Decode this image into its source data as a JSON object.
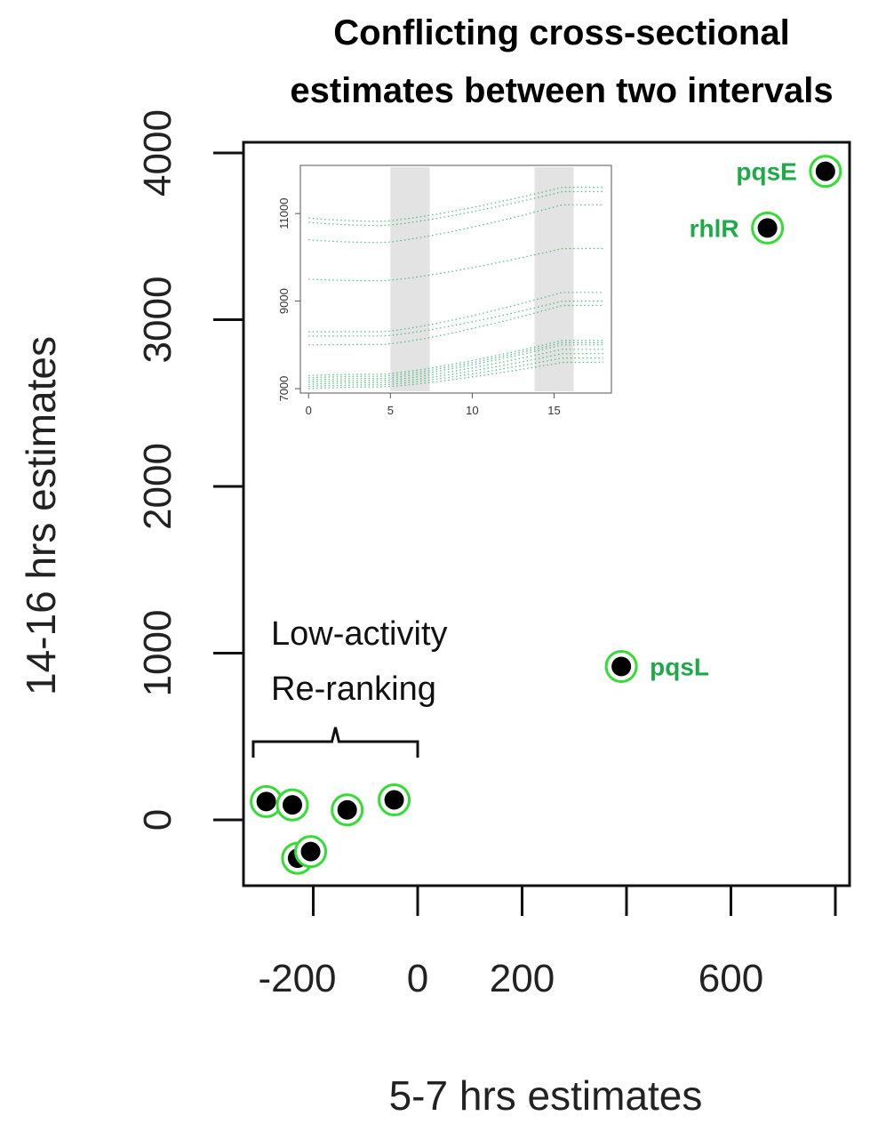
{
  "chart_data": {
    "type": "scatter",
    "title": [
      "Conflicting cross-sectional",
      "estimates between two intervals"
    ],
    "xlabel": "5-7 hrs estimates",
    "ylabel": "14-16 hrs estimates",
    "xlim": [
      -320,
      800
    ],
    "ylim": [
      -400,
      4250
    ],
    "x_ticks": [
      -200,
      0,
      200,
      400,
      600,
      800
    ],
    "x_tick_labels": [
      "-200",
      "0",
      "200",
      "",
      "600",
      ""
    ],
    "y_ticks": [
      0,
      1000,
      2000,
      3000,
      4000
    ],
    "y_tick_labels": [
      "0",
      "1000",
      "2000",
      "3000",
      "4000"
    ],
    "marker_fill": "#000000",
    "marker_ring": "#33dd33",
    "label_color": "#1faa4a",
    "points": [
      {
        "x": 781,
        "y": 3890,
        "label": "pqsE"
      },
      {
        "x": 670,
        "y": 3550,
        "label": "rhlR"
      },
      {
        "x": 390,
        "y": 920,
        "label": "pqsL"
      },
      {
        "x": -290,
        "y": 110,
        "label": ""
      },
      {
        "x": -240,
        "y": 90,
        "label": ""
      },
      {
        "x": -135,
        "y": 60,
        "label": ""
      },
      {
        "x": -45,
        "y": 120,
        "label": ""
      },
      {
        "x": -230,
        "y": -230,
        "label": ""
      },
      {
        "x": -205,
        "y": -190,
        "label": ""
      }
    ],
    "annotation": {
      "lines": [
        "Low-activity",
        "Re-ranking"
      ],
      "bracket_x": [
        -315,
        0
      ]
    },
    "inset": {
      "type": "line",
      "xlim": [
        -0.5,
        18.5
      ],
      "ylim": [
        6900,
        12100
      ],
      "x_ticks": [
        0,
        5,
        10,
        15
      ],
      "y_ticks": [
        7000,
        9000,
        11000
      ],
      "shaded_intervals": [
        [
          5,
          7.4
        ],
        [
          13.8,
          16.2
        ]
      ],
      "line_color": "#2db36b",
      "series_start_end": [
        [
          7000,
          7600
        ],
        [
          7050,
          7700
        ],
        [
          7100,
          7800
        ],
        [
          7150,
          7900
        ],
        [
          7200,
          8000
        ],
        [
          7250,
          8050
        ],
        [
          7300,
          8100
        ],
        [
          8000,
          8900
        ],
        [
          8200,
          9000
        ],
        [
          8300,
          9200
        ],
        [
          9500,
          10200
        ],
        [
          10400,
          11200
        ],
        [
          10800,
          11500
        ],
        [
          10900,
          11600
        ]
      ]
    }
  }
}
